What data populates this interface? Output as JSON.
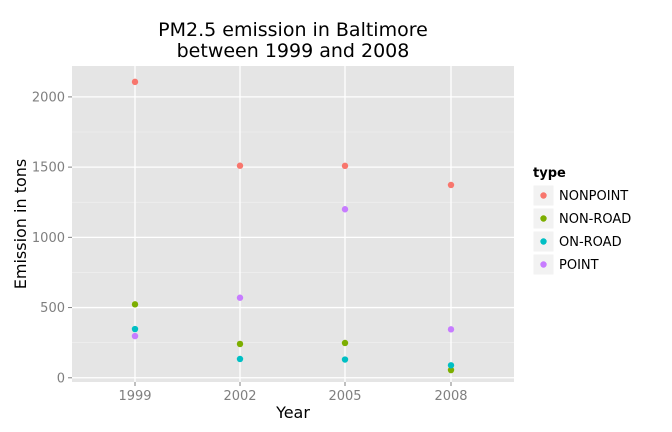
{
  "chart_data": {
    "type": "scatter",
    "title_lines": [
      "PM2.5 emission in Baltimore",
      "between 1999 and 2008"
    ],
    "xlabel": "Year",
    "ylabel": "Emission in tons",
    "x": [
      1999,
      2002,
      2005,
      2008
    ],
    "xticks": [
      "1999",
      "2002",
      "2005",
      "2008"
    ],
    "yticks": [
      0,
      500,
      1000,
      1500,
      2000
    ],
    "ylim": [
      -30,
      2220
    ],
    "grid": true,
    "legend_position": "right",
    "legend_title": "type",
    "series": [
      {
        "name": "NONPOINT",
        "color": "#F8766D",
        "values": [
          2107,
          1510,
          1509,
          1373
        ]
      },
      {
        "name": "NON-ROAD",
        "color": "#7CAE00",
        "values": [
          523,
          241,
          248,
          55
        ]
      },
      {
        "name": "ON-ROAD",
        "color": "#00BFC4",
        "values": [
          347,
          134,
          130,
          89
        ]
      },
      {
        "name": "POINT",
        "color": "#C77CFF",
        "values": [
          297,
          570,
          1200,
          345
        ]
      }
    ]
  }
}
